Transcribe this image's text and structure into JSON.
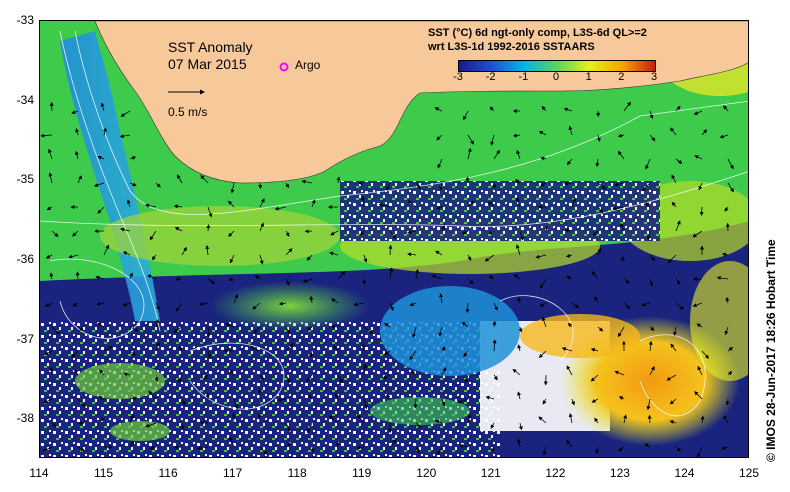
{
  "title": {
    "line1": "SST Anomaly",
    "line2": "07 Mar 2015"
  },
  "legend": {
    "argo_label": "Argo",
    "argo_color": "#ff00ff",
    "vector_label": "0.5 m/s"
  },
  "info": {
    "line1": "SST (°C) 6d ngt-only comp, L3S-6d QL>=2",
    "line2": "wrt L3S-1d 1992-2016 SSTAARS"
  },
  "colorbar": {
    "ticks": [
      "-3",
      "-2",
      "-1",
      "0",
      "1",
      "2",
      "3"
    ],
    "range": [
      -3,
      3
    ],
    "colors": [
      "#1a1a8c",
      "#1e4fd6",
      "#00b7e8",
      "#58d65c",
      "#e6ef1f",
      "#f7a400",
      "#c81e10"
    ]
  },
  "axes": {
    "lon_ticks": [
      "114",
      "115",
      "116",
      "117",
      "118",
      "119",
      "120",
      "121",
      "122",
      "123",
      "124",
      "125"
    ],
    "lat_ticks": [
      "-33",
      "-34",
      "-35",
      "-36",
      "-37",
      "-38"
    ],
    "lon_range": [
      114,
      125
    ],
    "lat_range": [
      -33,
      -38.5
    ]
  },
  "credit": "© IMOS 28-Jun-2017 18:26 Hobart Time",
  "colors": {
    "land": "#f7c99a",
    "ocean_low": "#1a237e",
    "ocean_mid": "#3ecb4c",
    "ocean_high": "#f2a614"
  }
}
